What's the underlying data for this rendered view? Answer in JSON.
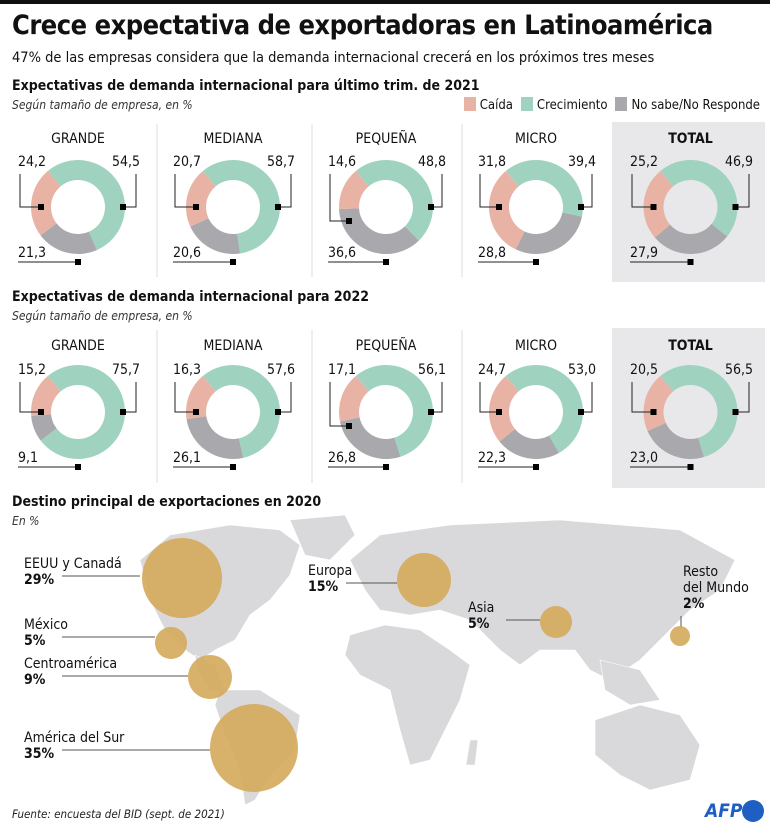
{
  "header": {
    "title": "Crece expectativa de exportadoras en Latinoamérica",
    "subtitle": "47% de las empresas considera que la demanda internacional crecerá en los próximos tres meses"
  },
  "legend": [
    {
      "label": "Caída",
      "color": "#e8b3a4"
    },
    {
      "label": "Crecimiento",
      "color": "#9fd3bf"
    },
    {
      "label": "No sabe/No Responde",
      "color": "#a9a9ad"
    }
  ],
  "chart_data": [
    {
      "type": "pie",
      "title": "Expectativas de demanda internacional para último trim. de 2021",
      "subtitle": "Según tamaño de empresa, en %",
      "categories": [
        "GRANDE",
        "MEDIANA",
        "PEQUEÑA",
        "MICRO",
        "TOTAL"
      ],
      "series": [
        {
          "name": "Caída",
          "values": [
            "24,2",
            "20,7",
            "14,6",
            "31,8",
            "25,2"
          ]
        },
        {
          "name": "Crecimiento",
          "values": [
            "54,5",
            "58,7",
            "48,8",
            "39,4",
            "46,9"
          ]
        },
        {
          "name": "No sabe/No Responde",
          "values": [
            "21,3",
            "20,6",
            "36,6",
            "28,8",
            "27,9"
          ]
        }
      ]
    },
    {
      "type": "pie",
      "title": "Expectativas de demanda internacional para 2022",
      "subtitle": "Según tamaño de empresa, en %",
      "categories": [
        "GRANDE",
        "MEDIANA",
        "PEQUEÑA",
        "MICRO",
        "TOTAL"
      ],
      "series": [
        {
          "name": "Caída",
          "values": [
            "15,2",
            "16,3",
            "17,1",
            "24,7",
            "20,5"
          ]
        },
        {
          "name": "Crecimiento",
          "values": [
            "75,7",
            "57,6",
            "56,1",
            "53,0",
            "56,5"
          ]
        },
        {
          "name": "No sabe/No Responde",
          "values": [
            "9,1",
            "26,1",
            "26,8",
            "22,3",
            "23,0"
          ]
        }
      ]
    },
    {
      "type": "scatter",
      "title": "Destino principal de exportaciones en 2020",
      "subtitle": "En %",
      "bubble_color": "#d4a95a",
      "points": [
        {
          "label": "EEUU y Canadá",
          "value": "29%"
        },
        {
          "label": "México",
          "value": "5%"
        },
        {
          "label": "Centroamérica",
          "value": "9%"
        },
        {
          "label": "América del Sur",
          "value": "35%"
        },
        {
          "label": "Europa",
          "value": "15%"
        },
        {
          "label": "Asia",
          "value": "5%"
        },
        {
          "label": "Resto del Mundo",
          "value": "2%"
        }
      ]
    }
  ],
  "footer": {
    "source": "Fuente: encuesta del BID (sept. de 2021)",
    "logo": "AFP"
  }
}
